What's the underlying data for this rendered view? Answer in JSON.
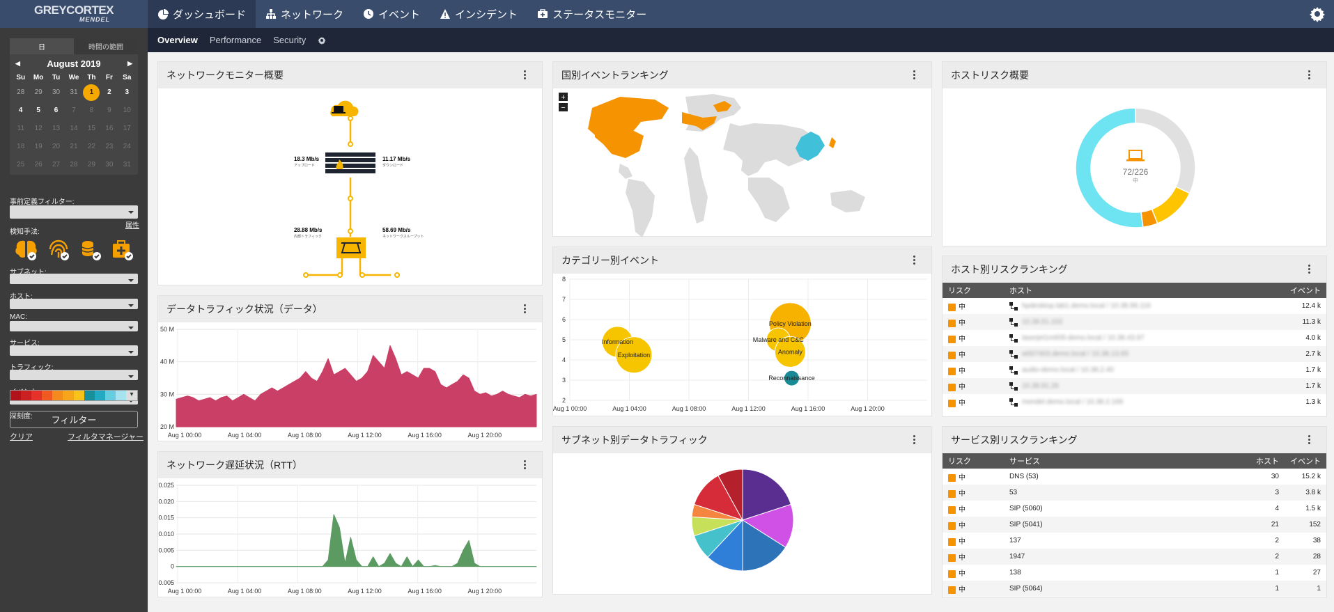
{
  "brand": {
    "line1": "GREYCORTEX",
    "line2": "MENDEL"
  },
  "nav": {
    "items": [
      {
        "label": "ダッシュボード",
        "icon": "dashboard-icon",
        "active": true
      },
      {
        "label": "ネットワーク",
        "icon": "network-icon"
      },
      {
        "label": "イベント",
        "icon": "event-icon"
      },
      {
        "label": "インシデント",
        "icon": "warning-icon"
      },
      {
        "label": "ステータスモニター",
        "icon": "medkit-icon"
      }
    ]
  },
  "subnav": {
    "items": [
      "Overview",
      "Performance",
      "Security"
    ],
    "active": "Overview"
  },
  "sidebar": {
    "tabs": [
      "日",
      "時間の範囲"
    ],
    "month": "August 2019",
    "dow": [
      "Su",
      "Mo",
      "Tu",
      "We",
      "Th",
      "Fr",
      "Sa"
    ],
    "days": [
      [
        "28",
        "29",
        "30",
        "31",
        "1",
        "2",
        "3"
      ],
      [
        "4",
        "5",
        "6",
        "7",
        "8",
        "9",
        "10"
      ],
      [
        "11",
        "12",
        "13",
        "14",
        "15",
        "16",
        "17"
      ],
      [
        "18",
        "19",
        "20",
        "21",
        "22",
        "23",
        "24"
      ],
      [
        "25",
        "26",
        "27",
        "28",
        "29",
        "30",
        "31"
      ]
    ],
    "selected_day": "1",
    "attr_link": "属性",
    "predefined_filter": "事前定義フィルター:",
    "detection": "検知手法:",
    "subnet": "サブネット:",
    "host": "ホスト:",
    "mac": "MAC:",
    "service": "サービス:",
    "traffic": "トラフィック:",
    "event": "イベント:",
    "severity": "深刻度:",
    "severity_colors": [
      "#b1121c",
      "#cc1f1f",
      "#e6312a",
      "#f05a22",
      "#f58a1f",
      "#f7a51b",
      "#f8c21a",
      "#1a8f9c",
      "#23a9c2",
      "#66cde0",
      "#a6e3ef"
    ],
    "filter_button": "フィルター",
    "clear": "クリア",
    "filter_manager": "フィルタマネージャー"
  },
  "panels": {
    "network_monitor": {
      "title": "ネットワークモニター概要",
      "upload": "18.3 Mb/s",
      "upload_label": "アップロード",
      "download": "11.17 Mb/s",
      "download_label": "ダウンロード",
      "fw_traffic": "28.88 Mb/s",
      "fw_traffic_label": "内部トラフィック",
      "throughput": "58.69 Mb/s",
      "throughput_label": "ネットワークスループット"
    },
    "country_ranking": {
      "title": "国別イベントランキング",
      "zoom_in": "+",
      "zoom_out": "−"
    },
    "host_risk": {
      "title": "ホストリスク概要",
      "center": "72/226",
      "center_sub": "中"
    },
    "data_traffic": {
      "title": "データトラフィック状況（データ）"
    },
    "category_events": {
      "title": "カテゴリー別イベント"
    },
    "rtt": {
      "title": "ネットワーク遅延状況（RTT）"
    },
    "subnet_traffic": {
      "title": "サブネット別データトラフィック"
    },
    "host_ranking": {
      "title": "ホスト別リスクランキング",
      "columns": [
        "リスク",
        "ホスト",
        "イベント"
      ],
      "rows": [
        {
          "risk": "中",
          "host": "hpdesktop.lab1.demo.local / 10.38.99.116",
          "events": "12.4 k"
        },
        {
          "risk": "中",
          "host": "10.38.51.102",
          "events": "11.3 k"
        },
        {
          "risk": "中",
          "host": "laserjet1m605-demo.local / 10.38.43.97",
          "events": "4.0 k"
        },
        {
          "risk": "中",
          "host": "w007403.demo.local / 10.38.13.65",
          "events": "2.7 k"
        },
        {
          "risk": "中",
          "host": "audio-demo.local / 10.38.2.40",
          "events": "1.7 k"
        },
        {
          "risk": "中",
          "host": "10.38.91.26",
          "events": "1.7 k"
        },
        {
          "risk": "中",
          "host": "mendel.demo.local / 10.38.2.169",
          "events": "1.3 k"
        }
      ]
    },
    "service_ranking": {
      "title": "サービス別リスクランキング",
      "columns": [
        "リスク",
        "サービス",
        "ホスト",
        "イベント"
      ],
      "rows": [
        {
          "risk": "中",
          "service": "DNS (53)",
          "hosts": "30",
          "events": "15.2 k"
        },
        {
          "risk": "中",
          "service": "53",
          "hosts": "3",
          "events": "3.8 k"
        },
        {
          "risk": "中",
          "service": "SIP (5060)",
          "hosts": "4",
          "events": "1.5 k"
        },
        {
          "risk": "中",
          "service": "SIP (5041)",
          "hosts": "21",
          "events": "152"
        },
        {
          "risk": "中",
          "service": "137",
          "hosts": "2",
          "events": "38"
        },
        {
          "risk": "中",
          "service": "1947",
          "hosts": "2",
          "events": "28"
        },
        {
          "risk": "中",
          "service": "138",
          "hosts": "1",
          "events": "27"
        },
        {
          "risk": "中",
          "service": "SIP (5064)",
          "hosts": "1",
          "events": "1"
        }
      ]
    }
  },
  "chart_data": [
    {
      "type": "area",
      "series": [
        {
          "values": [
            28.5,
            29,
            29.5,
            29,
            28,
            28.5,
            29,
            28,
            29,
            29.5,
            28,
            29,
            30,
            29,
            28,
            30,
            31,
            32,
            31,
            32,
            33,
            34,
            35,
            37,
            35,
            34,
            37,
            41,
            36,
            37,
            38,
            36,
            34,
            35,
            37,
            42,
            40,
            38,
            45,
            41,
            36,
            37,
            36,
            35,
            38,
            38,
            37,
            33,
            32,
            33,
            34,
            36,
            35,
            31,
            30,
            30.5,
            29.5,
            30,
            31,
            30,
            29.5,
            29,
            30,
            29.5,
            30
          ]
        }
      ],
      "x_ticks": [
        "Aug 1 00:00",
        "Aug 1 04:00",
        "Aug 1 08:00",
        "Aug 1 12:00",
        "Aug 1 16:00",
        "Aug 1 20:00"
      ],
      "y_ticks": [
        "20 M",
        "30 M",
        "40 M",
        "50 M"
      ],
      "ylim": [
        20,
        50
      ],
      "color": "#c93f66"
    },
    {
      "type": "scatter",
      "points": [
        {
          "label": "Information",
          "x": 3.2,
          "y": 4.9,
          "r": 22,
          "color": "#f7c400"
        },
        {
          "label": "Exploitation",
          "x": 4.3,
          "y": 4.25,
          "r": 26,
          "color": "#f7c400"
        },
        {
          "label": "Policy Violation",
          "x": 14.8,
          "y": 5.8,
          "r": 30,
          "color": "#f7b200"
        },
        {
          "label": "Malware and C&C",
          "x": 14.0,
          "y": 5.0,
          "r": 17,
          "color": "#f7c400"
        },
        {
          "label": "Anomaly",
          "x": 14.8,
          "y": 4.4,
          "r": 22,
          "color": "#f7c400"
        },
        {
          "label": "Reconnaissance",
          "x": 14.9,
          "y": 3.1,
          "r": 11,
          "color": "#178a96"
        }
      ],
      "x_ticks": [
        "Aug 1 00:00",
        "Aug 1 04:00",
        "Aug 1 08:00",
        "Aug 1 12:00",
        "Aug 1 16:00",
        "Aug 1 20:00"
      ],
      "y_ticks": [
        "2",
        "3",
        "4",
        "5",
        "6",
        "7",
        "8"
      ],
      "ylim": [
        2,
        8
      ],
      "xlim": [
        0,
        24
      ]
    },
    {
      "type": "area",
      "series": [
        {
          "values": [
            0,
            0,
            0,
            0,
            0,
            0,
            0,
            0,
            0,
            0,
            0,
            0,
            0,
            0,
            0,
            0,
            0,
            0,
            0,
            0,
            0,
            0,
            0,
            0,
            0,
            0,
            0,
            0.002,
            0.016,
            0.012,
            0.001,
            0.009,
            0.002,
            0,
            0,
            0.003,
            0,
            0.001,
            0.004,
            0.001,
            0,
            0.003,
            0,
            0.002,
            0,
            0,
            0.0003,
            0,
            0,
            0,
            0.001,
            0.005,
            0.008,
            0.001,
            0,
            0,
            0,
            0,
            0,
            0,
            0,
            0,
            0,
            0,
            0
          ]
        }
      ],
      "x_ticks": [
        "Aug 1 00:00",
        "Aug 1 04:00",
        "Aug 1 08:00",
        "Aug 1 12:00",
        "Aug 1 16:00",
        "Aug 1 20:00"
      ],
      "y_ticks": [
        "-0.005",
        "0",
        "0.005",
        "0.010",
        "0.015",
        "0.020",
        "0.025"
      ],
      "ylim": [
        -0.005,
        0.025
      ],
      "color": "#5b9a61"
    },
    {
      "type": "pie",
      "values": [
        20,
        14,
        16,
        12,
        8,
        6,
        4,
        12,
        8
      ],
      "colors": [
        "#5a2d91",
        "#d051e6",
        "#2c73b8",
        "#2f7ed8",
        "#45c1cc",
        "#c6e05a",
        "#f58640",
        "#d62c3a",
        "#b5202d"
      ]
    },
    {
      "type": "pie",
      "values": [
        32,
        12,
        4,
        52
      ],
      "colors": [
        "#e0e0e0",
        "#ffc400",
        "#f59300",
        "#6ee4f2"
      ],
      "center": "72/226"
    }
  ]
}
